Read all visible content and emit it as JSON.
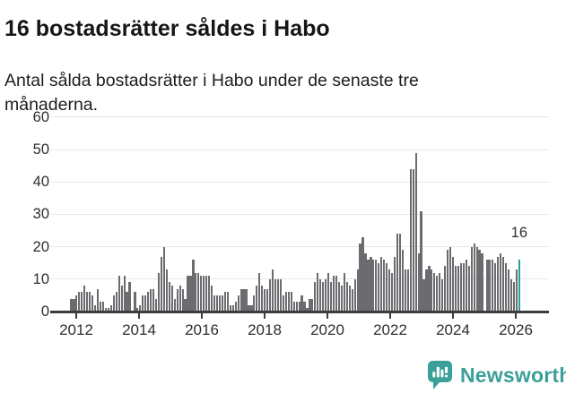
{
  "header": {
    "title": "16 bostadsrätter såldes i Habo",
    "subtitle_line1": "Antal sålda bostadsrätter i Habo under de senaste tre",
    "subtitle_line2": "månaderna."
  },
  "footer": {
    "brand": "Newsworthy",
    "logo_icon": "bar-chart-speech-bubble-icon"
  },
  "colors": {
    "bar": "#6c6c70",
    "highlight": "#2f9e99",
    "brand": "#3ca09a",
    "grid": "#e7e7e7",
    "axis": "#3d3d3d",
    "text": "#2e2e2e"
  },
  "chart_data": {
    "type": "bar",
    "title": "16 bostadsrätter såldes i Habo",
    "subtitle": "Antal sålda bostadsrätter i Habo under de senaste tre månaderna.",
    "frequency": "monthly",
    "x_start": "2012-01",
    "x_end": "2026-02",
    "x_tick_labels": [
      "2012",
      "2014",
      "2016",
      "2018",
      "2020",
      "2022",
      "2024",
      "2026"
    ],
    "y_ticks": [
      0,
      10,
      20,
      30,
      40,
      50,
      60
    ],
    "ylim": [
      0,
      60
    ],
    "grid": "horizontal",
    "legend": "none",
    "annotation_label": "16",
    "highlight_last_value": 16,
    "values": [
      4,
      4,
      5,
      6,
      6,
      8,
      6,
      6,
      5,
      2,
      7,
      3,
      3,
      1,
      1,
      2,
      5,
      6,
      11,
      8,
      11,
      6,
      9,
      0,
      6,
      1,
      2,
      5,
      5,
      6,
      7,
      7,
      4,
      12,
      17,
      20,
      13,
      9,
      8,
      4,
      7,
      8,
      7,
      4,
      11,
      11,
      16,
      12,
      12,
      11,
      11,
      11,
      11,
      8,
      5,
      5,
      5,
      5,
      6,
      6,
      2,
      2,
      3,
      5,
      7,
      7,
      7,
      2,
      2,
      5,
      8,
      12,
      8,
      7,
      7,
      10,
      13,
      10,
      10,
      10,
      5,
      6,
      6,
      6,
      3,
      3,
      3,
      5,
      3,
      1,
      4,
      4,
      9,
      12,
      10,
      9,
      10,
      12,
      9,
      11,
      11,
      9,
      8,
      12,
      9,
      8,
      7,
      10,
      13,
      21,
      23,
      18,
      16,
      17,
      16,
      16,
      15,
      17,
      16,
      15,
      13,
      12,
      17,
      24,
      24,
      19,
      13,
      13,
      44,
      44,
      49,
      18,
      31,
      10,
      13,
      14,
      13,
      12,
      11,
      12,
      10,
      14,
      19,
      20,
      17,
      14,
      14,
      15,
      15,
      16,
      14,
      20,
      21,
      20,
      19,
      18,
      0,
      16,
      16,
      16,
      15,
      17,
      18,
      17,
      15,
      13,
      10,
      9,
      13,
      16
    ]
  }
}
